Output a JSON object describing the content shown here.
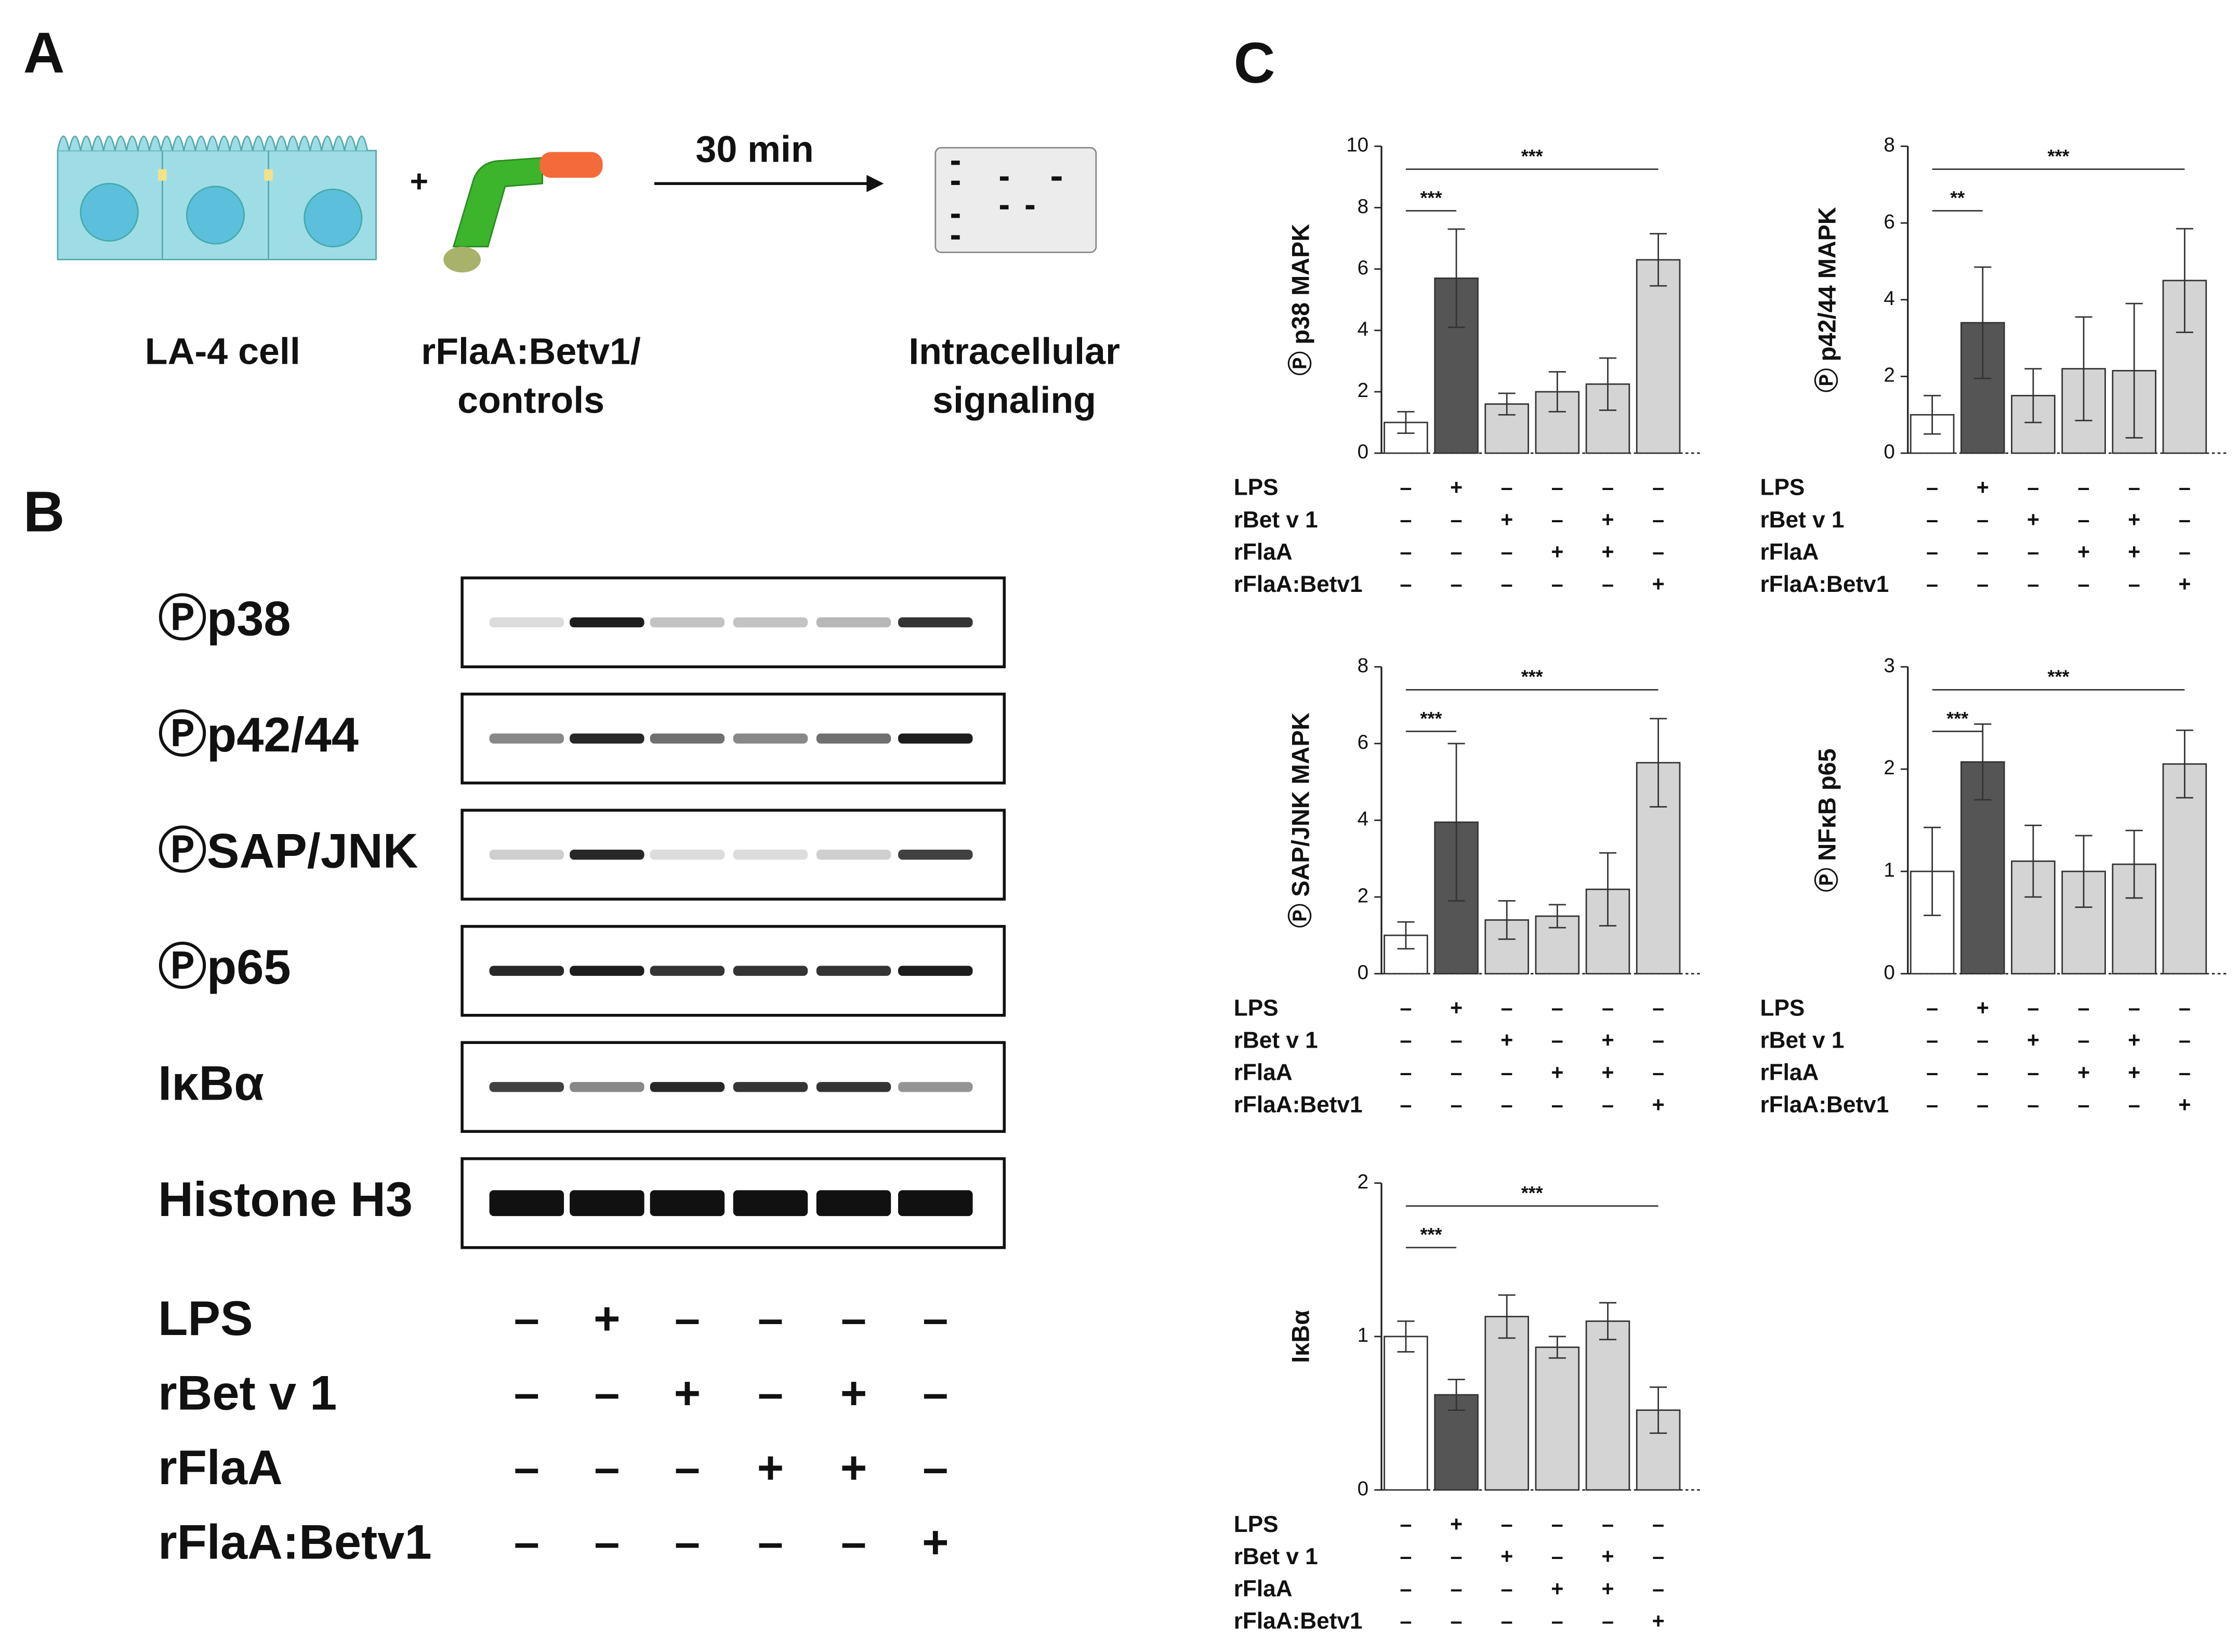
{
  "panel_labels": [
    "A",
    "B",
    "C"
  ],
  "panel_a": {
    "plus": "+",
    "step": "30 min",
    "captions": [
      [
        "LA-4 cell"
      ],
      [
        "rFlaA:Betv1/",
        "controls"
      ],
      [
        "Intracellular",
        "signaling"
      ]
    ]
  },
  "panel_b": {
    "blots": [
      "Ⓟp38",
      "Ⓟp42/44",
      "ⓅSAP/JNK",
      "Ⓟp65",
      "IκBα",
      "Histone H3"
    ],
    "treatments": [
      {
        "name": "LPS",
        "signs": [
          "–",
          "+",
          "–",
          "–",
          "–",
          "–"
        ]
      },
      {
        "name": "rBet v 1",
        "signs": [
          "–",
          "–",
          "+",
          "–",
          "+",
          "–"
        ]
      },
      {
        "name": "rFlaA",
        "signs": [
          "–",
          "–",
          "–",
          "+",
          "+",
          "–"
        ]
      },
      {
        "name": "rFlaA:Betv1",
        "signs": [
          "–",
          "–",
          "–",
          "–",
          "–",
          "+"
        ]
      }
    ]
  },
  "chart_data": [
    {
      "type": "bar",
      "y_label": "Ⓟ p38 MAPK",
      "values": [
        1,
        5.7,
        1.6,
        2.0,
        2.25,
        6.3
      ],
      "errors": [
        0.35,
        1.6,
        0.35,
        0.65,
        0.85,
        0.85
      ],
      "colors": [
        "#ffffff",
        "#555555",
        "#d4d4d4",
        "#d4d4d4",
        "#d4d4d4",
        "#d4d4d4"
      ],
      "ylim": [
        0,
        10
      ],
      "yticks": [
        0,
        2,
        4,
        6,
        8,
        10
      ],
      "annotations": [
        "***",
        "***"
      ],
      "treatments": [
        {
          "name": "LPS",
          "signs": [
            "–",
            "+",
            "–",
            "–",
            "–",
            "–"
          ]
        },
        {
          "name": "rBet v 1",
          "signs": [
            "–",
            "–",
            "+",
            "–",
            "+",
            "–"
          ]
        },
        {
          "name": "rFlaA",
          "signs": [
            "–",
            "–",
            "–",
            "+",
            "+",
            "–"
          ]
        },
        {
          "name": "rFlaA:Betv1",
          "signs": [
            "–",
            "–",
            "–",
            "–",
            "–",
            "+"
          ]
        }
      ]
    },
    {
      "type": "bar",
      "y_label": "Ⓟ p42/44 MAPK",
      "values": [
        1,
        3.4,
        1.5,
        2.2,
        2.15,
        4.5
      ],
      "errors": [
        0.5,
        1.45,
        0.7,
        1.35,
        1.75,
        1.35
      ],
      "colors": [
        "#ffffff",
        "#555555",
        "#d4d4d4",
        "#d4d4d4",
        "#d4d4d4",
        "#d4d4d4"
      ],
      "ylim": [
        0,
        8
      ],
      "yticks": [
        0,
        2,
        4,
        6,
        8
      ],
      "annotations": [
        "**",
        "***"
      ],
      "treatments": [
        {
          "name": "LPS",
          "signs": [
            "–",
            "+",
            "–",
            "–",
            "–",
            "–"
          ]
        },
        {
          "name": "rBet v 1",
          "signs": [
            "–",
            "–",
            "+",
            "–",
            "+",
            "–"
          ]
        },
        {
          "name": "rFlaA",
          "signs": [
            "–",
            "–",
            "–",
            "+",
            "+",
            "–"
          ]
        },
        {
          "name": "rFlaA:Betv1",
          "signs": [
            "–",
            "–",
            "–",
            "–",
            "–",
            "+"
          ]
        }
      ]
    },
    {
      "type": "bar",
      "y_label": "Ⓟ SAP/JNK MAPK",
      "values": [
        1,
        3.95,
        1.4,
        1.5,
        2.2,
        5.5
      ],
      "errors": [
        0.35,
        2.05,
        0.5,
        0.3,
        0.95,
        1.15
      ],
      "colors": [
        "#ffffff",
        "#555555",
        "#d4d4d4",
        "#d4d4d4",
        "#d4d4d4",
        "#d4d4d4"
      ],
      "ylim": [
        0,
        8
      ],
      "yticks": [
        0,
        2,
        4,
        6,
        8
      ],
      "annotations": [
        "***",
        "***"
      ],
      "treatments": [
        {
          "name": "LPS",
          "signs": [
            "–",
            "+",
            "–",
            "–",
            "–",
            "–"
          ]
        },
        {
          "name": "rBet v 1",
          "signs": [
            "–",
            "–",
            "+",
            "–",
            "+",
            "–"
          ]
        },
        {
          "name": "rFlaA",
          "signs": [
            "–",
            "–",
            "–",
            "+",
            "+",
            "–"
          ]
        },
        {
          "name": "rFlaA:Betv1",
          "signs": [
            "–",
            "–",
            "–",
            "–",
            "–",
            "+"
          ]
        }
      ]
    },
    {
      "type": "bar",
      "y_label": "Ⓟ NFκB p65",
      "values": [
        1,
        2.07,
        1.1,
        1.0,
        1.07,
        2.05
      ],
      "errors": [
        0.43,
        0.37,
        0.35,
        0.35,
        0.33,
        0.33
      ],
      "colors": [
        "#ffffff",
        "#555555",
        "#d4d4d4",
        "#d4d4d4",
        "#d4d4d4",
        "#d4d4d4"
      ],
      "ylim": [
        0,
        3
      ],
      "yticks": [
        0,
        1,
        2,
        3
      ],
      "annotations": [
        "***",
        "***"
      ],
      "treatments": [
        {
          "name": "LPS",
          "signs": [
            "–",
            "+",
            "–",
            "–",
            "–",
            "–"
          ]
        },
        {
          "name": "rBet v 1",
          "signs": [
            "–",
            "–",
            "+",
            "–",
            "+",
            "–"
          ]
        },
        {
          "name": "rFlaA",
          "signs": [
            "–",
            "–",
            "–",
            "+",
            "+",
            "–"
          ]
        },
        {
          "name": "rFlaA:Betv1",
          "signs": [
            "–",
            "–",
            "–",
            "–",
            "–",
            "+"
          ]
        }
      ]
    },
    {
      "type": "bar",
      "y_label": "IκBα",
      "values": [
        1,
        0.62,
        1.13,
        0.93,
        1.1,
        0.52
      ],
      "errors": [
        0.1,
        0.1,
        0.14,
        0.07,
        0.12,
        0.15
      ],
      "colors": [
        "#ffffff",
        "#555555",
        "#d4d4d4",
        "#d4d4d4",
        "#d4d4d4",
        "#d4d4d4"
      ],
      "ylim": [
        0,
        2
      ],
      "yticks": [
        0,
        1,
        2
      ],
      "annotations": [
        "***",
        "***"
      ],
      "treatments": [
        {
          "name": "LPS",
          "signs": [
            "–",
            "+",
            "–",
            "–",
            "–",
            "–"
          ]
        },
        {
          "name": "rBet v 1",
          "signs": [
            "–",
            "–",
            "+",
            "–",
            "+",
            "–"
          ]
        },
        {
          "name": "rFlaA",
          "signs": [
            "–",
            "–",
            "–",
            "+",
            "+",
            "–"
          ]
        },
        {
          "name": "rFlaA:Betv1",
          "signs": [
            "–",
            "–",
            "–",
            "–",
            "–",
            "+"
          ]
        }
      ]
    }
  ]
}
